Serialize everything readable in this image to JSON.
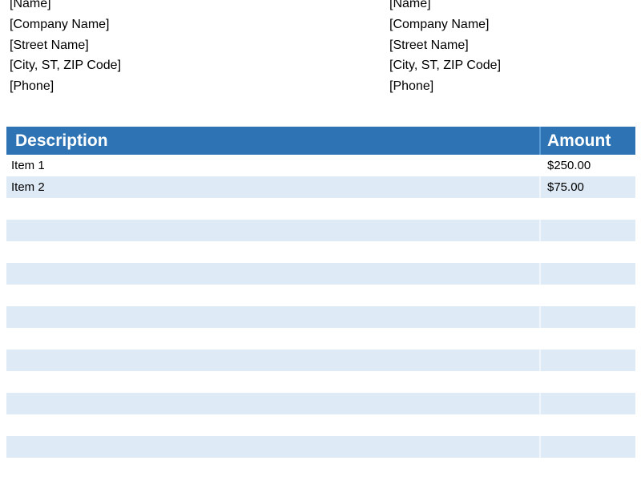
{
  "colors": {
    "page_background": "#FFFFFF",
    "table_header_bg": "#2E74B5",
    "table_header_text": "#FFFFFF",
    "table_stripe_bg": "#DEEAF6",
    "header_column_separator": "#5B9BD5",
    "body_text": "#000000"
  },
  "addresses": {
    "left": {
      "lines": [
        "[Name]",
        "[Company Name]",
        "[Street Name]",
        "[City, ST, ZIP Code]",
        "[Phone]"
      ]
    },
    "right": {
      "lines": [
        "[Name]",
        "[Company Name]",
        "[Street Name]",
        "[City, ST, ZIP Code]",
        "[Phone]"
      ]
    }
  },
  "table": {
    "columns": [
      {
        "label": "Description"
      },
      {
        "label": "Amount"
      }
    ],
    "rows": [
      {
        "description": "Item 1",
        "amount": "$250.00"
      },
      {
        "description": "Item 2",
        "amount": "$75.00"
      },
      {
        "description": "",
        "amount": ""
      },
      {
        "description": "",
        "amount": ""
      },
      {
        "description": "",
        "amount": ""
      },
      {
        "description": "",
        "amount": ""
      },
      {
        "description": "",
        "amount": ""
      },
      {
        "description": "",
        "amount": ""
      },
      {
        "description": "",
        "amount": ""
      },
      {
        "description": "",
        "amount": ""
      },
      {
        "description": "",
        "amount": ""
      },
      {
        "description": "",
        "amount": ""
      },
      {
        "description": "",
        "amount": ""
      },
      {
        "description": "",
        "amount": ""
      }
    ]
  }
}
